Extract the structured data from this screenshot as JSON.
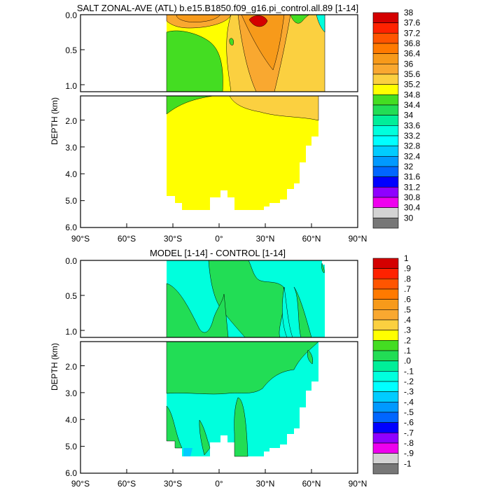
{
  "chart_data": [
    {
      "type": "contour",
      "title": "SALT ZONAL-AVE (ATL) b.e15.B1850.f09_g16.pi_control.all.89 [1-14]",
      "ylabel": "DEPTH (km)",
      "xlim": [
        -90,
        90
      ],
      "ylim": [
        6.0,
        0.0
      ],
      "depth_break_km": 1.1,
      "x_ticks": [
        "90°S",
        "60°S",
        "30°S",
        "0°",
        "30°N",
        "60°N",
        "90°N"
      ],
      "y_ticks_upper": [
        "0.0",
        "0.5",
        "1.0"
      ],
      "y_ticks_lower": [
        "2.0",
        "3.0",
        "4.0",
        "5.0",
        "6.0"
      ],
      "colorbar_labels": [
        "38",
        "37.6",
        "37.2",
        "36.8",
        "36.4",
        "36",
        "35.6",
        "35.2",
        "34.8",
        "34.4",
        "34",
        "33.6",
        "33.2",
        "32.8",
        "32.4",
        "32",
        "31.6",
        "31.2",
        "30.8",
        "30.4",
        "30"
      ],
      "colorbar_colors": [
        "#d40000",
        "#ff2200",
        "#ff5500",
        "#ff7a00",
        "#f79a1a",
        "#f9a830",
        "#fbd040",
        "#ffff00",
        "#44dd22",
        "#22dd55",
        "#00ee99",
        "#00ffdd",
        "#00ffff",
        "#00ccff",
        "#0099ff",
        "#0066ff",
        "#0000ff",
        "#8f00ff",
        "#ee00ee",
        "#d3d3d3",
        "#777777"
      ]
    },
    {
      "type": "contour",
      "title": "MODEL [1-14] - CONTROL [1-14]",
      "ylabel": "DEPTH (km)",
      "xlim": [
        -90,
        90
      ],
      "ylim": [
        6.0,
        0.0
      ],
      "depth_break_km": 1.1,
      "x_ticks": [
        "90°S",
        "60°S",
        "30°S",
        "0°",
        "30°N",
        "60°N",
        "90°N"
      ],
      "y_ticks_upper": [
        "0.0",
        "0.5",
        "1.0"
      ],
      "y_ticks_lower": [
        "2.0",
        "3.0",
        "4.0",
        "5.0",
        "6.0"
      ],
      "colorbar_labels": [
        "1",
        ".9",
        ".8",
        ".7",
        ".6",
        ".5",
        ".4",
        ".3",
        ".2",
        ".1",
        ".0",
        "-.1",
        "-.2",
        "-.3",
        "-.4",
        "-.5",
        "-.6",
        "-.7",
        "-.8",
        "-.9",
        "-1"
      ],
      "colorbar_colors": [
        "#d40000",
        "#ff2200",
        "#ff5500",
        "#ff7a00",
        "#f79a1a",
        "#f9a830",
        "#fbd040",
        "#ffff00",
        "#44dd22",
        "#22dd55",
        "#00ee99",
        "#00ffdd",
        "#00ffff",
        "#00ccff",
        "#0099ff",
        "#0066ff",
        "#0000ff",
        "#8f00ff",
        "#ee00ee",
        "#d3d3d3",
        "#777777"
      ]
    }
  ]
}
